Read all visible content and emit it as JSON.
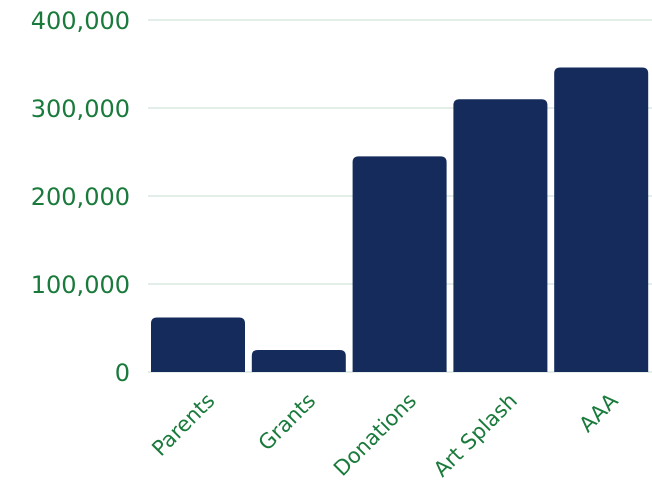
{
  "chart_data": {
    "type": "bar",
    "categories": [
      "Parents",
      "Grants",
      "Donations",
      "Art Splash",
      "AAA"
    ],
    "values": [
      62000,
      25000,
      245000,
      310000,
      346000
    ],
    "ylim": [
      0,
      400000
    ],
    "yticks": [
      0,
      100000,
      200000,
      300000,
      400000
    ],
    "ytick_labels": [
      "0",
      "100,000",
      "200,000",
      "300,000",
      "400,000"
    ],
    "grid": true,
    "bar_color": "#142b5c",
    "label_color": "#1a7a3c"
  }
}
